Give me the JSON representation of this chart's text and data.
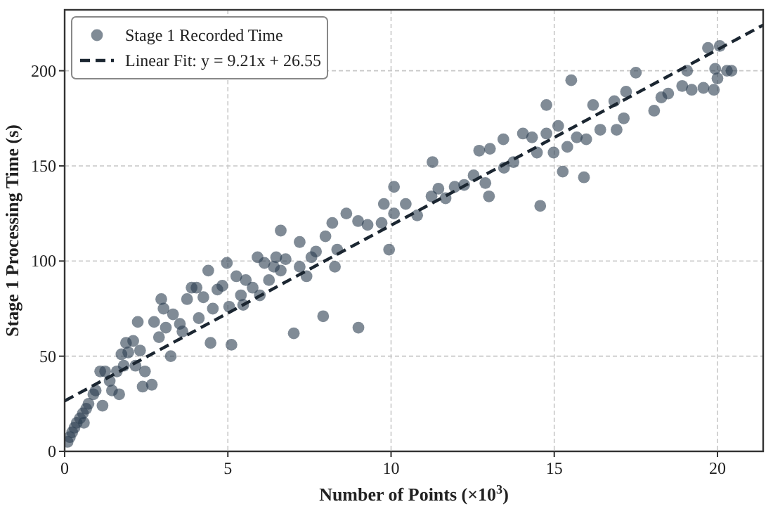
{
  "chart_data": {
    "type": "scatter",
    "xlabel": "Number of Points (×10$^{3}$)",
    "ylabel": "Stage 1 Processing Time (s)",
    "xlim": [
      0,
      21.4
    ],
    "ylim": [
      0,
      232
    ],
    "xticks": [
      0,
      5,
      10,
      15,
      20
    ],
    "yticks": [
      0,
      50,
      100,
      150,
      200
    ],
    "grid": true,
    "legend": "top left",
    "series": [
      {
        "name": "Stage 1 Recorded Time",
        "marker": "circle",
        "color": "#2c3e50",
        "x": [
          0.09,
          0.16,
          0.23,
          0.3,
          0.37,
          0.47,
          0.56,
          0.66,
          0.73,
          0.59,
          0.88,
          0.95,
          1.09,
          1.24,
          1.16,
          1.38,
          1.45,
          1.6,
          1.67,
          1.81,
          1.74,
          1.88,
          1.95,
          2.1,
          2.17,
          2.24,
          2.31,
          2.39,
          2.46,
          2.67,
          2.74,
          2.89,
          2.96,
          3.03,
          3.1,
          3.25,
          3.32,
          3.53,
          3.61,
          3.75,
          3.89,
          4.04,
          4.11,
          4.25,
          4.4,
          4.47,
          4.54,
          4.68,
          4.83,
          4.97,
          5.04,
          5.11,
          5.26,
          5.4,
          5.55,
          5.76,
          5.91,
          5.98,
          6.12,
          6.26,
          6.41,
          6.48,
          6.62,
          6.77,
          7.02,
          7.2,
          7.41,
          7.56,
          7.92,
          8.28,
          9.0,
          5.47,
          6.62,
          7.2,
          7.99,
          8.2,
          8.63,
          8.99,
          9.28,
          9.71,
          9.78,
          8.35,
          7.7,
          10.09,
          9.94,
          10.09,
          10.45,
          10.8,
          11.24,
          11.27,
          11.45,
          11.67,
          11.95,
          12.24,
          12.53,
          12.7,
          12.89,
          13.0,
          13.03,
          13.44,
          13.46,
          13.75,
          14.04,
          14.32,
          14.47,
          14.57,
          14.76,
          14.76,
          14.98,
          15.12,
          15.26,
          15.4,
          15.52,
          15.69,
          15.91,
          15.98,
          16.19,
          16.41,
          16.91,
          16.84,
          17.13,
          17.2,
          17.5,
          18.06,
          18.28,
          18.49,
          18.92,
          19.07,
          19.21,
          19.57,
          19.71,
          19.89,
          19.93,
          20.0,
          20.07,
          20.29,
          20.43
        ],
        "values": [
          5,
          7.5,
          10,
          12.4,
          15,
          17.4,
          20,
          22.4,
          25,
          15,
          30,
          32,
          42,
          42,
          24,
          37,
          32,
          42,
          30,
          45,
          51,
          57,
          52,
          58,
          45,
          68,
          53,
          34,
          42,
          35,
          68,
          60,
          80,
          75,
          65,
          50,
          72,
          67,
          63,
          80,
          86,
          86,
          70,
          81,
          95,
          57,
          75,
          85,
          87,
          99,
          76,
          56,
          92,
          82,
          90,
          86,
          102,
          82,
          99,
          90,
          97,
          102,
          95,
          101,
          62,
          97,
          92,
          102,
          71,
          97,
          65,
          77,
          116,
          110,
          113,
          120,
          125,
          121,
          119,
          120,
          130,
          106,
          105,
          139,
          106,
          125,
          130,
          124,
          134,
          152,
          138,
          133,
          139,
          140,
          145,
          158,
          141,
          134,
          159,
          164,
          149,
          152,
          167,
          165,
          157,
          129,
          182,
          167,
          157,
          171,
          147,
          160,
          195,
          165,
          144,
          164,
          182,
          169,
          169,
          184,
          175,
          189,
          199,
          179,
          186,
          188,
          192,
          200,
          190,
          191,
          212,
          190,
          201,
          196,
          213,
          200,
          200
        ]
      },
      {
        "name": "Linear Fit: y = 9.21x + 26.55",
        "type": "line",
        "line_style": "dashed",
        "color": "#1b2631",
        "x": [
          0,
          21.4
        ],
        "values": [
          26.5,
          224
        ]
      }
    ]
  }
}
